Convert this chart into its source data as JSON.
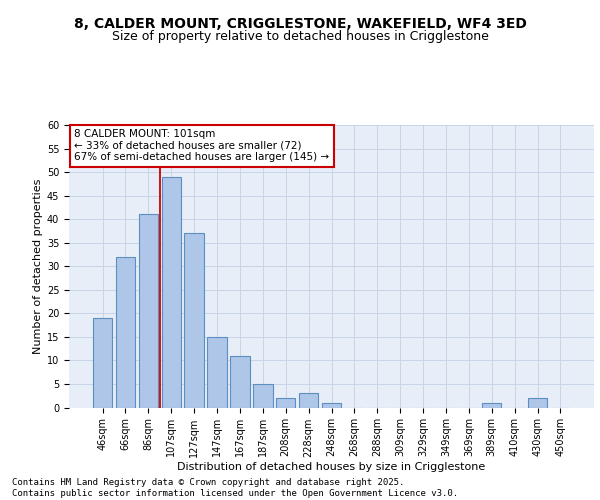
{
  "title_line1": "8, CALDER MOUNT, CRIGGLESTONE, WAKEFIELD, WF4 3ED",
  "title_line2": "Size of property relative to detached houses in Crigglestone",
  "xlabel": "Distribution of detached houses by size in Crigglestone",
  "ylabel": "Number of detached properties",
  "categories": [
    "46sqm",
    "66sqm",
    "86sqm",
    "107sqm",
    "127sqm",
    "147sqm",
    "167sqm",
    "187sqm",
    "208sqm",
    "228sqm",
    "248sqm",
    "268sqm",
    "288sqm",
    "309sqm",
    "329sqm",
    "349sqm",
    "369sqm",
    "389sqm",
    "410sqm",
    "430sqm",
    "450sqm"
  ],
  "values": [
    19,
    32,
    41,
    49,
    37,
    15,
    11,
    5,
    2,
    3,
    1,
    0,
    0,
    0,
    0,
    0,
    0,
    1,
    0,
    2,
    0
  ],
  "bar_color": "#aec6e8",
  "bar_edge_color": "#5a8fc0",
  "bar_edge_width": 0.8,
  "grid_color": "#c8d4e8",
  "bg_color": "#e8eef8",
  "vline_color": "#cc0000",
  "annotation_text": "8 CALDER MOUNT: 101sqm\n← 33% of detached houses are smaller (72)\n67% of semi-detached houses are larger (145) →",
  "annotation_box_color": "#cc0000",
  "ylim": [
    0,
    60
  ],
  "yticks": [
    0,
    5,
    10,
    15,
    20,
    25,
    30,
    35,
    40,
    45,
    50,
    55,
    60
  ],
  "footer_text": "Contains HM Land Registry data © Crown copyright and database right 2025.\nContains public sector information licensed under the Open Government Licence v3.0.",
  "title_fontsize": 10,
  "subtitle_fontsize": 9,
  "axis_label_fontsize": 8,
  "tick_fontsize": 7,
  "annotation_fontsize": 7.5,
  "footer_fontsize": 6.5
}
